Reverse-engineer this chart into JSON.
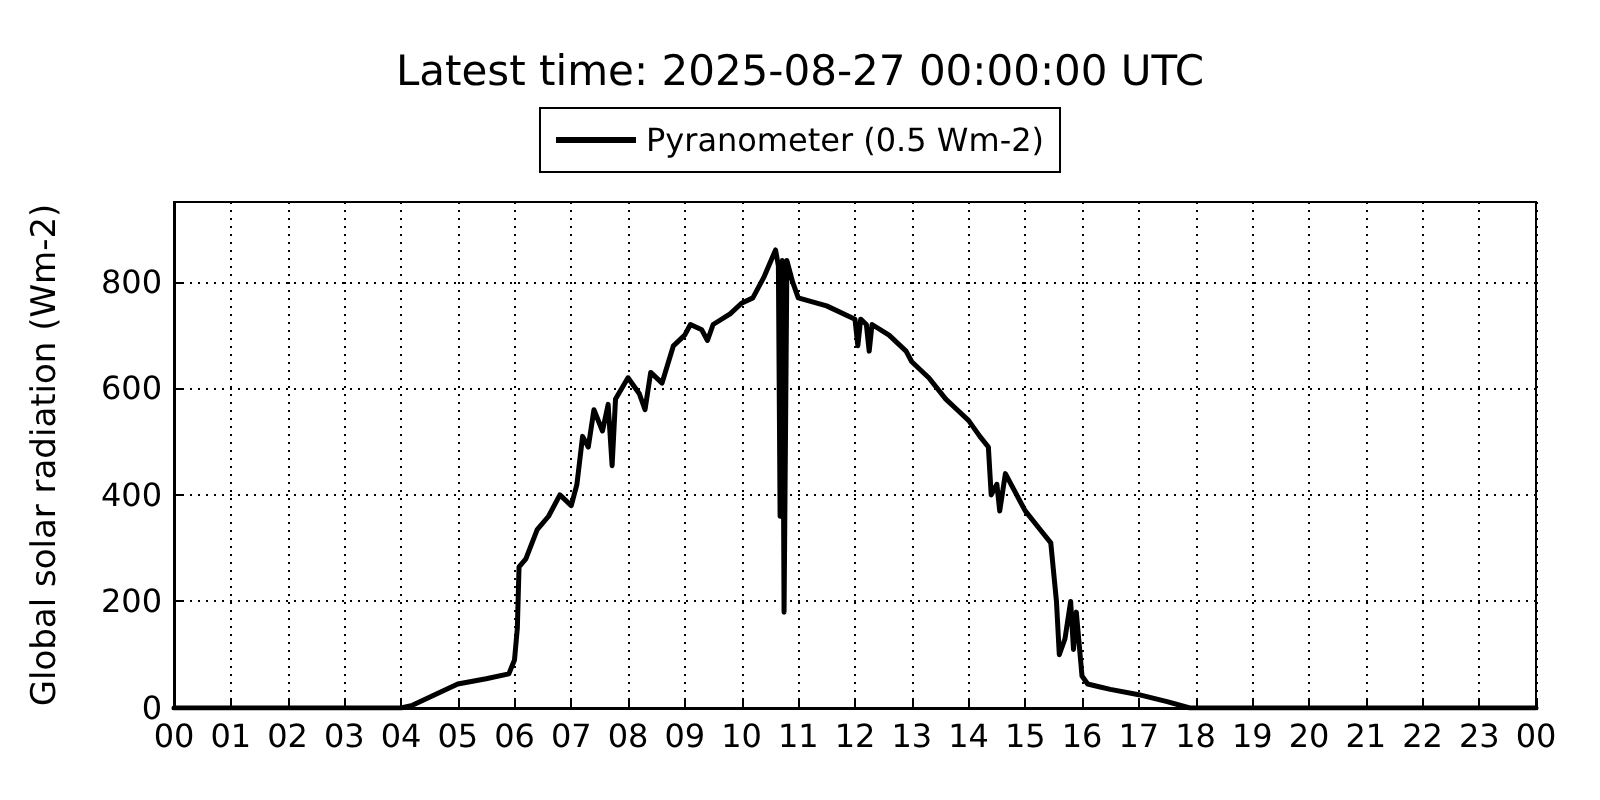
{
  "chart_data": {
    "type": "line",
    "title": "Latest time: 2025-08-27 00:00:00 UTC",
    "ylabel": "Global solar radiation (Wm-2)",
    "xlim": [
      0,
      24
    ],
    "xticks": [
      {
        "value": 0,
        "label": "00"
      },
      {
        "value": 1,
        "label": "01"
      },
      {
        "value": 2,
        "label": "02"
      },
      {
        "value": 3,
        "label": "03"
      },
      {
        "value": 4,
        "label": "04"
      },
      {
        "value": 5,
        "label": "05"
      },
      {
        "value": 6,
        "label": "06"
      },
      {
        "value": 7,
        "label": "07"
      },
      {
        "value": 8,
        "label": "08"
      },
      {
        "value": 9,
        "label": "09"
      },
      10,
      11,
      12,
      13,
      14,
      15,
      16,
      17,
      18,
      19,
      20,
      21,
      22,
      23,
      {
        "value": 24,
        "label": "00"
      }
    ],
    "ylim": [
      0,
      950
    ],
    "yticks": [
      0,
      200,
      400,
      600,
      800
    ],
    "grid": true,
    "legend": "top",
    "line_style": "solid",
    "marker": "none",
    "series": [
      {
        "name": "Pyranometer (0.5 Wm-2)",
        "color": "#000000",
        "x": [
          0,
          4,
          4.2,
          5,
          5.5,
          5.9,
          6,
          6.05,
          6.08,
          6.2,
          6.4,
          6.6,
          6.8,
          7,
          7.1,
          7.2,
          7.3,
          7.4,
          7.55,
          7.65,
          7.72,
          7.78,
          8,
          8.2,
          8.3,
          8.4,
          8.6,
          8.8,
          9,
          9.1,
          9.3,
          9.4,
          9.5,
          9.8,
          10,
          10.2,
          10.4,
          10.6,
          10.65,
          10.68,
          10.72,
          10.75,
          10.8,
          10.9,
          11,
          11.5,
          12,
          12.05,
          12.1,
          12.2,
          12.25,
          12.3,
          12.6,
          12.9,
          13,
          13.3,
          13.6,
          13.8,
          14,
          14.2,
          14.35,
          14.4,
          14.5,
          14.55,
          14.65,
          14.8,
          15,
          15.3,
          15.45,
          15.55,
          15.6,
          15.7,
          15.8,
          15.85,
          15.9,
          16,
          16.1,
          16.3,
          16.5,
          17,
          17.5,
          17.9,
          24
        ],
        "values": [
          0,
          0,
          5,
          45,
          55,
          64,
          90,
          150,
          265,
          280,
          335,
          360,
          400,
          380,
          420,
          510,
          490,
          560,
          520,
          570,
          455,
          580,
          620,
          590,
          560,
          630,
          610,
          680,
          700,
          720,
          710,
          690,
          720,
          740,
          760,
          770,
          810,
          860,
          830,
          360,
          840,
          180,
          840,
          800,
          770,
          755,
          730,
          680,
          730,
          720,
          670,
          720,
          700,
          670,
          650,
          620,
          580,
          560,
          540,
          510,
          490,
          400,
          420,
          370,
          440,
          410,
          370,
          330,
          310,
          200,
          100,
          130,
          200,
          110,
          180,
          60,
          45,
          40,
          35,
          25,
          12,
          0,
          0
        ]
      }
    ]
  }
}
